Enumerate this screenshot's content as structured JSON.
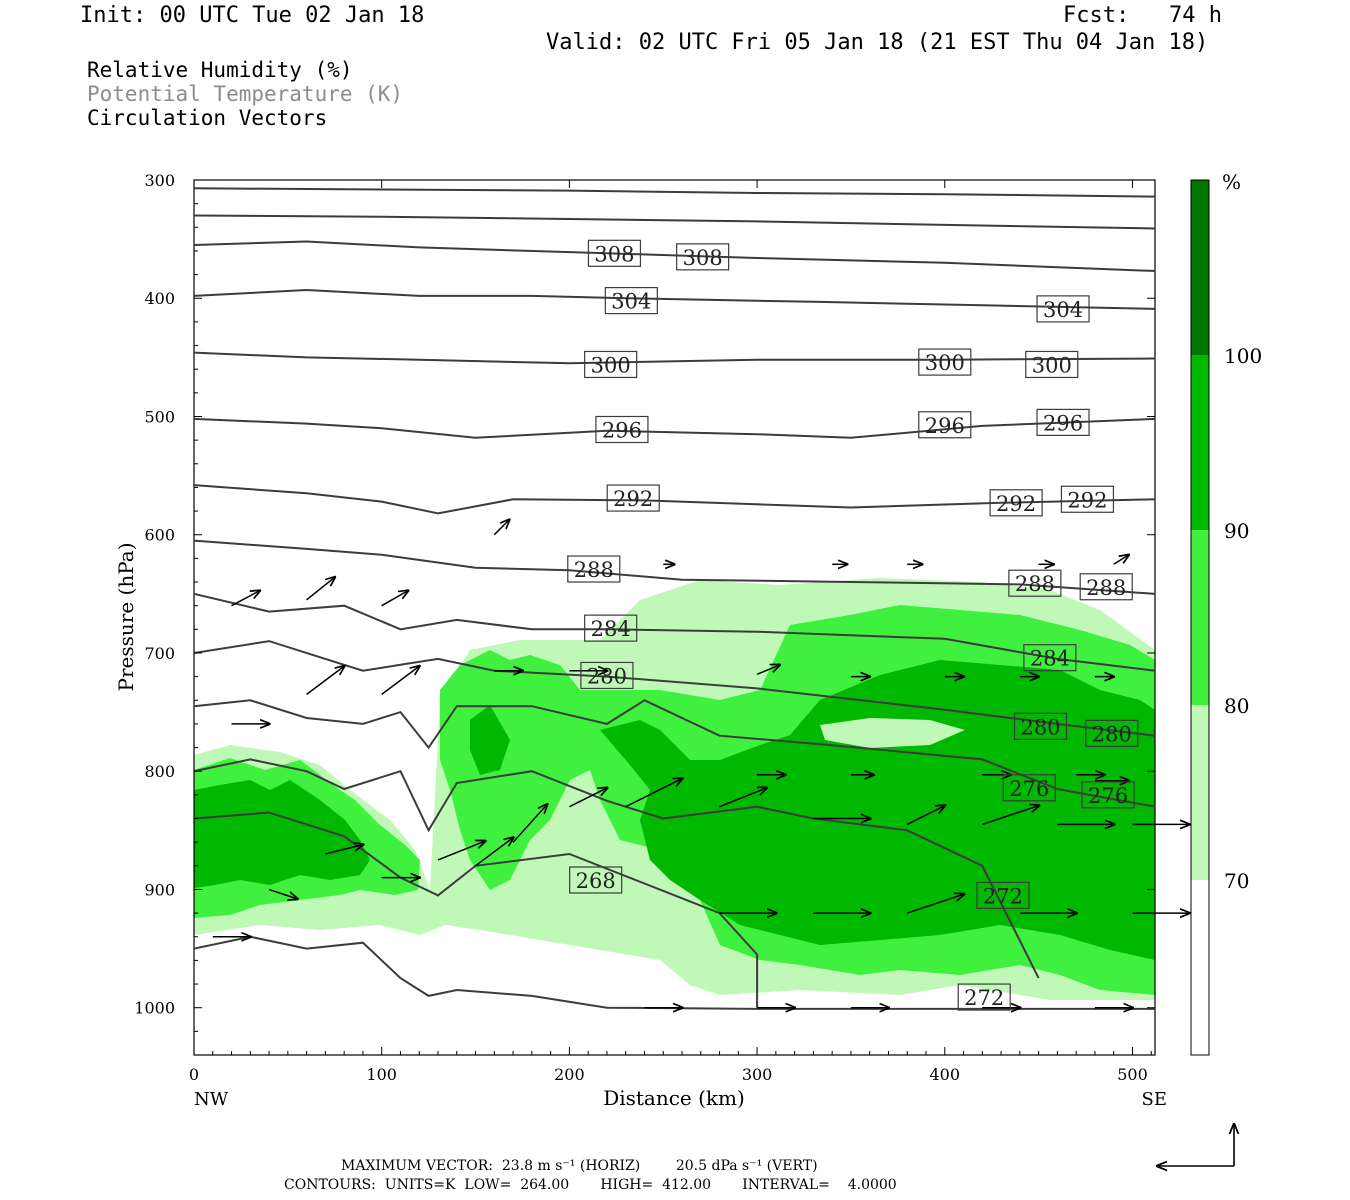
{
  "header": {
    "init": "Init: 00 UTC Tue 02 Jan 18",
    "fcst": "Fcst:   74 h",
    "valid": "Valid: 02 UTC Fri 05 Jan 18 (21 EST Thu 04 Jan 18)"
  },
  "legend": {
    "field1": "Relative Humidity (%)",
    "field2": "Potential Temperature (K)",
    "field3": "Circulation Vectors",
    "field2_color": "#8c8c8c"
  },
  "chart_data": {
    "type": "heatmap",
    "xlabel": "Distance (km)",
    "ylabel": "Pressure (hPa)",
    "xlim": [
      0,
      512
    ],
    "ylim": [
      1040,
      300
    ],
    "x_ticks": [
      0,
      100,
      200,
      300,
      400,
      500
    ],
    "y_ticks": [
      300,
      400,
      500,
      600,
      700,
      800,
      900,
      1000
    ],
    "x_end_labels": {
      "left": "NW",
      "right": "SE"
    },
    "colorbar": {
      "unit": "%",
      "levels": [
        70,
        80,
        90,
        100
      ],
      "colors": [
        "#ffffff",
        "#c0f8b8",
        "#3ff03f",
        "#00b800",
        "#007800"
      ]
    },
    "contour_labels": [
      {
        "x": 224,
        "p": 362,
        "text": "308"
      },
      {
        "x": 271,
        "p": 365,
        "text": "308"
      },
      {
        "x": 233,
        "p": 402,
        "text": "304"
      },
      {
        "x": 463,
        "p": 409,
        "text": "304"
      },
      {
        "x": 222,
        "p": 456,
        "text": "300"
      },
      {
        "x": 400,
        "p": 454,
        "text": "300"
      },
      {
        "x": 457,
        "p": 456,
        "text": "300"
      },
      {
        "x": 228,
        "p": 511,
        "text": "296"
      },
      {
        "x": 400,
        "p": 507,
        "text": "296"
      },
      {
        "x": 463,
        "p": 505,
        "text": "296"
      },
      {
        "x": 234,
        "p": 569,
        "text": "292"
      },
      {
        "x": 438,
        "p": 573,
        "text": "292"
      },
      {
        "x": 476,
        "p": 570,
        "text": "292"
      },
      {
        "x": 213,
        "p": 629,
        "text": "288"
      },
      {
        "x": 448,
        "p": 641,
        "text": "288"
      },
      {
        "x": 486,
        "p": 644,
        "text": "288"
      },
      {
        "x": 222,
        "p": 679,
        "text": "284"
      },
      {
        "x": 456,
        "p": 704,
        "text": "284"
      },
      {
        "x": 220,
        "p": 719,
        "text": "280"
      },
      {
        "x": 451,
        "p": 762,
        "text": "280"
      },
      {
        "x": 489,
        "p": 768,
        "text": "280"
      },
      {
        "x": 445,
        "p": 814,
        "text": "276"
      },
      {
        "x": 487,
        "p": 820,
        "text": "276"
      },
      {
        "x": 214,
        "p": 892,
        "text": "268"
      },
      {
        "x": 431,
        "p": 905,
        "text": "272"
      },
      {
        "x": 421,
        "p": 991,
        "text": "272"
      }
    ]
  },
  "footer": {
    "line1": "MAXIMUM VECTOR:  23.8 m s⁻¹ (HORIZ)        20.5 dPa s⁻¹ (VERT)",
    "line2": "CONTOURS:  UNITS=K  LOW=  264.00       HIGH=  412.00       INTERVAL=    4.0000"
  }
}
